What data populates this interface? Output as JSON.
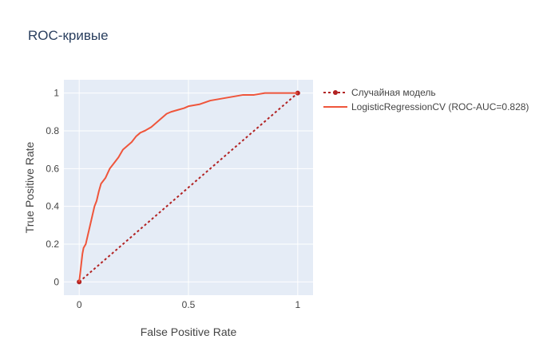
{
  "chart_data": {
    "type": "line",
    "title": "ROC-кривые",
    "xlabel": "False Positive Rate",
    "ylabel": "True Positive Rate",
    "xlim": [
      -0.07,
      1.07
    ],
    "ylim": [
      -0.07,
      1.07
    ],
    "grid": true,
    "legend_position": "top-right, outside plot",
    "xticks": [
      0,
      0.5,
      1
    ],
    "xtick_labels": [
      "0",
      "0.5",
      "1"
    ],
    "yticks": [
      0,
      0.2,
      0.4,
      0.6,
      0.8,
      1
    ],
    "ytick_labels": [
      "0",
      "0.2",
      "0.4",
      "0.6",
      "0.8",
      "1"
    ],
    "colors": {
      "background": "#e5ecf6",
      "grid": "#ffffff",
      "random_line": "#b22222",
      "roc_line": "#ef553b"
    },
    "series": [
      {
        "name": "Случайная модель",
        "style": "dotted",
        "markers": true,
        "x": [
          0,
          1
        ],
        "y": [
          0,
          1
        ]
      },
      {
        "name": "LogisticRegressionCV (ROC-AUC=0.828)",
        "style": "solid",
        "markers": false,
        "x": [
          0,
          0.005,
          0.01,
          0.015,
          0.02,
          0.03,
          0.04,
          0.05,
          0.06,
          0.07,
          0.08,
          0.09,
          0.1,
          0.12,
          0.14,
          0.16,
          0.18,
          0.2,
          0.22,
          0.24,
          0.26,
          0.28,
          0.3,
          0.33,
          0.36,
          0.38,
          0.4,
          0.42,
          0.45,
          0.48,
          0.5,
          0.55,
          0.6,
          0.65,
          0.7,
          0.75,
          0.8,
          0.85,
          0.9,
          1.0
        ],
        "y": [
          0,
          0.05,
          0.1,
          0.15,
          0.18,
          0.2,
          0.25,
          0.3,
          0.35,
          0.4,
          0.43,
          0.48,
          0.52,
          0.55,
          0.6,
          0.63,
          0.66,
          0.7,
          0.72,
          0.74,
          0.77,
          0.79,
          0.8,
          0.82,
          0.85,
          0.87,
          0.89,
          0.9,
          0.91,
          0.92,
          0.93,
          0.94,
          0.96,
          0.97,
          0.98,
          0.99,
          0.99,
          1.0,
          1.0,
          1.0
        ]
      }
    ]
  }
}
